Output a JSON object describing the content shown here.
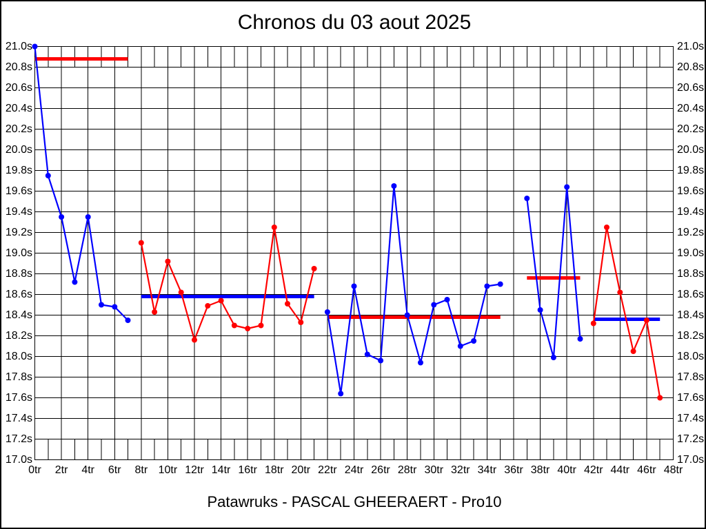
{
  "title": "Chronos du 03 aout 2025",
  "footer": "Patawruks - PASCAL GHEERAERT - Pro10",
  "colors": {
    "series_blue": "#0000ff",
    "series_red": "#ff0000",
    "grid": "#000000",
    "background": "#ffffff",
    "text": "#000000"
  },
  "chart_data": {
    "type": "line",
    "title": "Chronos du 03 aout 2025",
    "x_unit": "tr",
    "y_unit": "s",
    "xlim": [
      0,
      48
    ],
    "ylim": [
      17.0,
      21.0
    ],
    "x_tick_step": 2,
    "y_tick_step": 0.2,
    "grid": true,
    "legend": "none",
    "y_ticks": [
      {
        "value": 21.0,
        "label": "21.0s"
      },
      {
        "value": 20.8,
        "label": "20.8s"
      },
      {
        "value": 20.6,
        "label": "20.6s"
      },
      {
        "value": 20.4,
        "label": "20.4s"
      },
      {
        "value": 20.2,
        "label": "20.2s"
      },
      {
        "value": 20.0,
        "label": "20.0s"
      },
      {
        "value": 19.8,
        "label": "19.8s"
      },
      {
        "value": 19.6,
        "label": "19.6s"
      },
      {
        "value": 19.4,
        "label": "19.4s"
      },
      {
        "value": 19.2,
        "label": "19.2s"
      },
      {
        "value": 19.0,
        "label": "19.0s"
      },
      {
        "value": 18.8,
        "label": "18.8s"
      },
      {
        "value": 18.6,
        "label": "18.6s"
      },
      {
        "value": 18.4,
        "label": "18.4s"
      },
      {
        "value": 18.2,
        "label": "18.2s"
      },
      {
        "value": 18.0,
        "label": "18.0s"
      },
      {
        "value": 17.8,
        "label": "17.8s"
      },
      {
        "value": 17.6,
        "label": "17.6s"
      },
      {
        "value": 17.4,
        "label": "17.4s"
      },
      {
        "value": 17.2,
        "label": "17.2s"
      },
      {
        "value": 17.0,
        "label": "17.0s"
      }
    ],
    "x_ticks": [
      {
        "value": 0,
        "label": "0tr"
      },
      {
        "value": 2,
        "label": "2tr"
      },
      {
        "value": 4,
        "label": "4tr"
      },
      {
        "value": 6,
        "label": "6tr"
      },
      {
        "value": 8,
        "label": "8tr"
      },
      {
        "value": 10,
        "label": "10tr"
      },
      {
        "value": 12,
        "label": "12tr"
      },
      {
        "value": 14,
        "label": "14tr"
      },
      {
        "value": 16,
        "label": "16tr"
      },
      {
        "value": 18,
        "label": "18tr"
      },
      {
        "value": 20,
        "label": "20tr"
      },
      {
        "value": 22,
        "label": "22tr"
      },
      {
        "value": 24,
        "label": "24tr"
      },
      {
        "value": 26,
        "label": "26tr"
      },
      {
        "value": 28,
        "label": "28tr"
      },
      {
        "value": 30,
        "label": "30tr"
      },
      {
        "value": 32,
        "label": "32tr"
      },
      {
        "value": 34,
        "label": "34tr"
      },
      {
        "value": 36,
        "label": "36tr"
      },
      {
        "value": 38,
        "label": "38tr"
      },
      {
        "value": 40,
        "label": "40tr"
      },
      {
        "value": 42,
        "label": "42tr"
      },
      {
        "value": 44,
        "label": "44tr"
      },
      {
        "value": 46,
        "label": "46tr"
      },
      {
        "value": 48,
        "label": "48tr"
      }
    ],
    "series": [
      {
        "name": "stint-1-lap-times",
        "color": "#0000ff",
        "points": [
          [
            0,
            21.0
          ],
          [
            1,
            19.75
          ],
          [
            2,
            19.35
          ],
          [
            3,
            18.72
          ],
          [
            4,
            19.35
          ],
          [
            5,
            18.5
          ],
          [
            6,
            18.48
          ],
          [
            7,
            18.35
          ]
        ]
      },
      {
        "name": "stint-2-lap-times",
        "color": "#ff0000",
        "points": [
          [
            8,
            19.1
          ],
          [
            9,
            18.43
          ],
          [
            10,
            18.92
          ],
          [
            11,
            18.62
          ],
          [
            12,
            18.16
          ],
          [
            13,
            18.49
          ],
          [
            14,
            18.54
          ],
          [
            15,
            18.3
          ],
          [
            16,
            18.27
          ],
          [
            17,
            18.3
          ],
          [
            18,
            19.25
          ],
          [
            19,
            18.51
          ],
          [
            20,
            18.33
          ],
          [
            21,
            18.85
          ]
        ]
      },
      {
        "name": "stint-3-lap-times",
        "color": "#0000ff",
        "points": [
          [
            22,
            18.43
          ],
          [
            23,
            17.64
          ],
          [
            24,
            18.68
          ],
          [
            25,
            18.02
          ],
          [
            26,
            17.96
          ],
          [
            27,
            19.65
          ],
          [
            28,
            18.4
          ],
          [
            29,
            17.94
          ],
          [
            30,
            18.5
          ],
          [
            31,
            18.55
          ],
          [
            32,
            18.1
          ],
          [
            33,
            18.15
          ],
          [
            34,
            18.68
          ],
          [
            35,
            18.7
          ]
        ]
      },
      {
        "name": "stint-4-lap-times",
        "color": "#0000ff",
        "points": [
          [
            37,
            19.53
          ],
          [
            38,
            18.45
          ],
          [
            39,
            17.99
          ],
          [
            40,
            19.64
          ],
          [
            41,
            18.17
          ]
        ]
      },
      {
        "name": "stint-5-lap-times",
        "color": "#ff0000",
        "points": [
          [
            42,
            18.32
          ],
          [
            43,
            19.25
          ],
          [
            44,
            18.62
          ],
          [
            45,
            18.05
          ],
          [
            46,
            18.35
          ],
          [
            47,
            17.6
          ]
        ]
      }
    ],
    "average_lines": [
      {
        "name": "reference-line-stint-1",
        "color": "#ff0000",
        "value": 20.88,
        "from": 0,
        "to": 7
      },
      {
        "name": "average-line-stint-2",
        "color": "#0000ff",
        "value": 18.58,
        "from": 8,
        "to": 21
      },
      {
        "name": "average-line-stint-3",
        "color": "#ff0000",
        "value": 18.38,
        "from": 22,
        "to": 35
      },
      {
        "name": "average-line-stint-4",
        "color": "#ff0000",
        "value": 18.76,
        "from": 37,
        "to": 41
      },
      {
        "name": "average-line-stint-5",
        "color": "#0000ff",
        "value": 18.36,
        "from": 42,
        "to": 47
      }
    ]
  }
}
